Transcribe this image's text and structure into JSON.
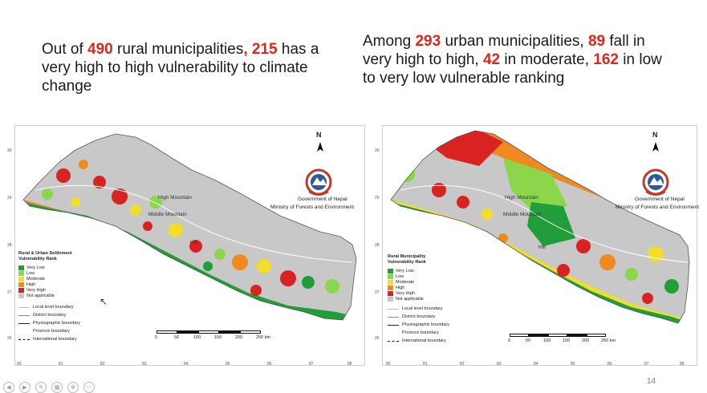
{
  "left_headline": {
    "part1": "Out of ",
    "num1": "490",
    "part2": " rural municipalities",
    "comma": ", ",
    "num2": "215",
    "part3": " has a very high to high vulnerability to climate change"
  },
  "right_headline": {
    "part1": "Among ",
    "num1": "293",
    "part2": " urban municipalities, ",
    "num2": "89",
    "part3": " fall in very high to high, ",
    "num3": "42",
    "part4": " in moderate, ",
    "num4": "162",
    "part5": " in low to very low vulnerable ranking"
  },
  "colors": {
    "highlight_red": "#e0261c",
    "very_low": "#1f9e3a",
    "low": "#8bd64a",
    "moderate": "#f2dd2a",
    "high": "#ef8a1f",
    "very_high": "#d92323",
    "not_applicable": "#c8c8c8"
  },
  "left_map": {
    "north": "N",
    "gov_line1": "Government of Nepal",
    "gov_line2": "Ministry of Forests and Environment",
    "region_high_mountain": "High Mountain",
    "region_middle_mountain": "Middle Mountain",
    "region_hill": "Hill",
    "legend_title_line1": "Rural & Urban Settlement",
    "legend_title_line2": "Vulnerability Rank",
    "y_ticks": [
      "30",
      "29",
      "28",
      "27",
      "26"
    ],
    "x_ticks": [
      "80",
      "81",
      "82",
      "83",
      "84",
      "85",
      "86",
      "87",
      "88"
    ]
  },
  "right_map": {
    "north": "N",
    "gov_line1": "Government of Nepal",
    "gov_line2": "Ministry of Forests and Environment",
    "region_high_mountain": "High Mountain",
    "region_middle_mountain": "Middle Mountain",
    "region_hill": "Hill",
    "legend_title_line1": "Rural Municipality",
    "legend_title_line2": "Vulnerability Rank",
    "y_ticks": [
      "30",
      "29",
      "28",
      "27",
      "26"
    ],
    "x_ticks": [
      "80",
      "81",
      "82",
      "83",
      "84",
      "85",
      "86",
      "87",
      "88"
    ]
  },
  "legend": {
    "very_low": "Very Low",
    "low": "Low",
    "moderate": "Moderate",
    "high": "High",
    "very_high": "Very High",
    "not_applicable": "Not applicable",
    "local_level_boundary": "Local level boundary",
    "district_boundary": "District boundary",
    "physiographic_boundary": "Physiographic boundary",
    "province_boundary": "Province boundary",
    "international_boundary": "International boundary"
  },
  "scale": {
    "labels": [
      "0",
      "50",
      "100",
      "150",
      "200",
      "250 km"
    ]
  },
  "page_number": "14"
}
